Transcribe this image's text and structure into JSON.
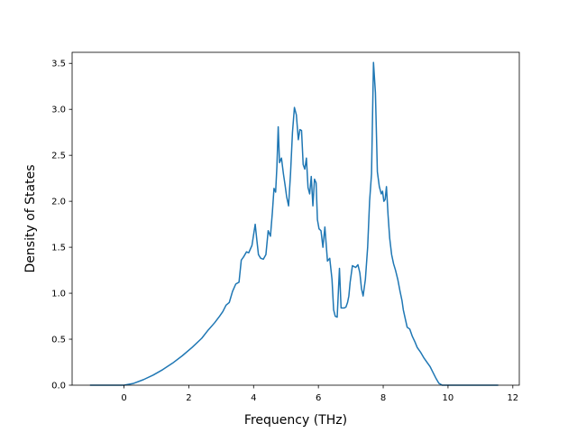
{
  "chart_data": {
    "type": "line",
    "title": "",
    "xlabel": "Frequency (THz)",
    "ylabel": "Density of States",
    "xlim": [
      -1.6,
      12.2
    ],
    "ylim": [
      0.0,
      3.62
    ],
    "grid": false,
    "x_ticks": [
      0,
      2,
      4,
      6,
      8,
      10,
      12
    ],
    "y_ticks": [
      0.0,
      0.5,
      1.0,
      1.5,
      2.0,
      2.5,
      3.0,
      3.5
    ],
    "x_tick_labels": [
      "0",
      "2",
      "4",
      "6",
      "8",
      "10",
      "12"
    ],
    "y_tick_labels": [
      "0.0",
      "0.5",
      "1.0",
      "1.5",
      "2.0",
      "2.5",
      "3.0",
      "3.5"
    ],
    "line_color": "#1f77b4",
    "series": [
      {
        "x": [
          -1.05,
          -0.5,
          0.0,
          0.3,
          0.6,
          0.9,
          1.2,
          1.5,
          1.8,
          2.1,
          2.4,
          2.6,
          2.8,
          2.95,
          3.05,
          3.15,
          3.25,
          3.35,
          3.45,
          3.55,
          3.62,
          3.7,
          3.78,
          3.85,
          3.95,
          4.05,
          4.1,
          4.15,
          4.22,
          4.3,
          4.38,
          4.45,
          4.52,
          4.58,
          4.63,
          4.68,
          4.72,
          4.76,
          4.8,
          4.86,
          4.92,
          4.97,
          5.02,
          5.08,
          5.14,
          5.2,
          5.26,
          5.32,
          5.38,
          5.43,
          5.48,
          5.53,
          5.58,
          5.63,
          5.68,
          5.73,
          5.78,
          5.83,
          5.88,
          5.93,
          5.97,
          6.02,
          6.08,
          6.14,
          6.2,
          6.28,
          6.35,
          6.42,
          6.47,
          6.52,
          6.58,
          6.65,
          6.7,
          6.75,
          6.8,
          6.85,
          6.9,
          6.94,
          6.98,
          7.05,
          7.15,
          7.22,
          7.28,
          7.33,
          7.38,
          7.45,
          7.52,
          7.58,
          7.64,
          7.7,
          7.76,
          7.82,
          7.88,
          7.94,
          7.98,
          8.02,
          8.06,
          8.1,
          8.15,
          8.2,
          8.26,
          8.32,
          8.38,
          8.45,
          8.52,
          8.58,
          8.62,
          8.67,
          8.74,
          8.82,
          8.9,
          8.98,
          9.05,
          9.15,
          9.25,
          9.35,
          9.45,
          9.52,
          9.62,
          9.72,
          9.82,
          9.92,
          10.02,
          10.12,
          10.22,
          10.32,
          10.4,
          10.46,
          10.52,
          10.8,
          11.2,
          11.55
        ],
        "y": [
          0.0,
          0.0,
          0.0,
          0.02,
          0.06,
          0.11,
          0.17,
          0.24,
          0.32,
          0.41,
          0.51,
          0.6,
          0.68,
          0.75,
          0.8,
          0.87,
          0.9,
          1.02,
          1.1,
          1.12,
          1.36,
          1.4,
          1.45,
          1.44,
          1.52,
          1.75,
          1.58,
          1.42,
          1.38,
          1.37,
          1.42,
          1.68,
          1.62,
          1.88,
          2.14,
          2.1,
          2.38,
          2.81,
          2.42,
          2.47,
          2.3,
          2.18,
          2.05,
          1.95,
          2.3,
          2.75,
          3.02,
          2.94,
          2.67,
          2.78,
          2.77,
          2.4,
          2.35,
          2.47,
          2.15,
          2.08,
          2.27,
          1.95,
          2.24,
          2.2,
          1.8,
          1.7,
          1.68,
          1.5,
          1.72,
          1.35,
          1.38,
          1.15,
          0.82,
          0.75,
          0.74,
          1.27,
          0.84,
          0.84,
          0.84,
          0.85,
          0.9,
          0.97,
          1.12,
          1.3,
          1.28,
          1.31,
          1.22,
          1.05,
          0.97,
          1.15,
          1.5,
          2.0,
          2.3,
          3.51,
          3.18,
          2.32,
          2.16,
          2.08,
          2.11,
          2.0,
          2.02,
          2.16,
          1.85,
          1.6,
          1.42,
          1.32,
          1.25,
          1.15,
          1.02,
          0.92,
          0.82,
          0.74,
          0.63,
          0.61,
          0.53,
          0.47,
          0.41,
          0.36,
          0.3,
          0.25,
          0.2,
          0.15,
          0.08,
          0.02,
          0.0,
          0.0,
          0.0,
          0.0,
          0.0,
          0.0,
          0.0,
          0.0,
          0.0,
          0.0,
          0.0,
          0.0
        ]
      }
    ]
  }
}
